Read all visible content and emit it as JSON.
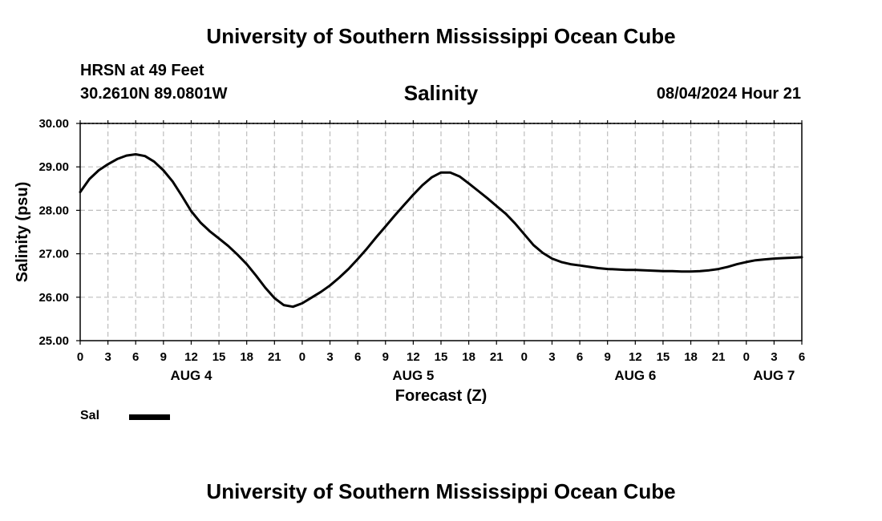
{
  "header": {
    "title": "University of Southern Mississippi Ocean Cube",
    "station": "HRSN at 49 Feet",
    "coordinates": "30.2610N  89.0801W",
    "issued": "08/04/2024 Hour 21"
  },
  "footer": {
    "title": "University of Southern Mississippi Ocean Cube"
  },
  "legend": {
    "label": "Sal"
  },
  "chart_data": {
    "type": "line",
    "title": "Salinity",
    "xlabel": "Forecast (Z)",
    "ylabel": "Salinity (psu)",
    "ylim": [
      25.0,
      30.0
    ],
    "xlim_hours": [
      0,
      78
    ],
    "y_ticks": [
      "25.00",
      "26.00",
      "27.00",
      "28.00",
      "29.00",
      "30.00"
    ],
    "x_tick_labels": [
      "0",
      "3",
      "6",
      "9",
      "12",
      "15",
      "18",
      "21",
      "0",
      "3",
      "6",
      "9",
      "12",
      "15",
      "18",
      "21",
      "0",
      "3",
      "6",
      "9",
      "12",
      "15",
      "18",
      "21",
      "0",
      "3",
      "6"
    ],
    "day_labels": [
      {
        "label": "AUG 4",
        "hour": 12
      },
      {
        "label": "AUG 5",
        "hour": 36
      },
      {
        "label": "AUG 6",
        "hour": 60
      },
      {
        "label": "AUG 7",
        "hour": 75
      }
    ],
    "grid": true,
    "series": [
      {
        "name": "Sal",
        "color": "#000000",
        "x_hours": [
          0,
          1,
          2,
          3,
          4,
          5,
          6,
          7,
          8,
          9,
          10,
          11,
          12,
          13,
          14,
          15,
          16,
          17,
          18,
          19,
          20,
          21,
          22,
          23,
          24,
          25,
          26,
          27,
          28,
          29,
          30,
          31,
          32,
          33,
          34,
          35,
          36,
          37,
          38,
          39,
          40,
          41,
          42,
          43,
          44,
          45,
          46,
          47,
          48,
          49,
          50,
          51,
          52,
          53,
          54,
          55,
          56,
          57,
          58,
          59,
          60,
          61,
          62,
          63,
          64,
          65,
          66,
          67,
          68,
          69,
          70,
          71,
          72,
          73,
          74,
          75,
          76,
          77,
          78
        ],
        "values": [
          28.42,
          28.72,
          28.92,
          29.06,
          29.18,
          29.26,
          29.29,
          29.25,
          29.12,
          28.92,
          28.66,
          28.33,
          27.98,
          27.72,
          27.52,
          27.35,
          27.18,
          26.98,
          26.76,
          26.5,
          26.22,
          25.98,
          25.82,
          25.78,
          25.86,
          25.99,
          26.12,
          26.27,
          26.45,
          26.65,
          26.88,
          27.12,
          27.38,
          27.63,
          27.88,
          28.12,
          28.36,
          28.58,
          28.76,
          28.87,
          28.87,
          28.78,
          28.62,
          28.45,
          28.28,
          28.1,
          27.92,
          27.7,
          27.45,
          27.2,
          27.02,
          26.89,
          26.81,
          26.76,
          26.73,
          26.7,
          26.67,
          26.65,
          26.64,
          26.63,
          26.63,
          26.62,
          26.61,
          26.6,
          26.6,
          26.59,
          26.59,
          26.6,
          26.62,
          26.65,
          26.7,
          26.76,
          26.81,
          26.85,
          26.87,
          26.89,
          26.9,
          26.91,
          26.92
        ]
      }
    ]
  }
}
